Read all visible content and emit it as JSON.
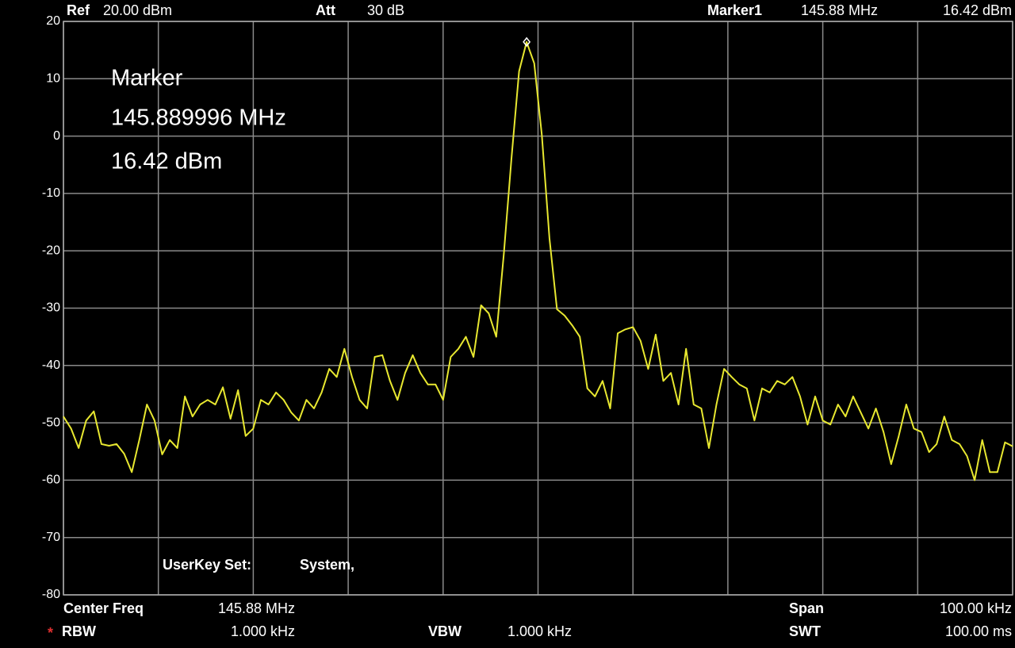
{
  "chart_data": {
    "type": "line",
    "header": {
      "ref_label": "Ref",
      "ref": "20.00 dBm",
      "att_label": "Att",
      "att": "30 dB",
      "marker_label": "Marker1",
      "marker_freq": "145.88 MHz",
      "marker_level": "16.42 dBm"
    },
    "annotation": [
      "Marker",
      "145.889996 MHz",
      "16.42 dBm"
    ],
    "userkey": {
      "label": "UserKey Set:",
      "value": "System,"
    },
    "footer": {
      "center_freq_label": "Center Freq",
      "center_freq": "145.88 MHz",
      "span_label": "Span",
      "span": "100.00 kHz",
      "rbw_flag": "*",
      "rbw_label": "RBW",
      "rbw": "1.000 kHz",
      "vbw_label": "VBW",
      "vbw": "1.000 kHz",
      "swt_label": "SWT",
      "swt": "100.00 ms"
    },
    "series": [
      {
        "color": "#e8e830",
        "values": [
          -48.9,
          -51,
          -54.4,
          -49.6,
          -48,
          -53.7,
          -54,
          -53.7,
          -55.4,
          -58.6,
          -52.9,
          -46.8,
          -49.6,
          -55.5,
          -53,
          -54.4,
          -45.4,
          -48.9,
          -46.8,
          -46,
          -46.8,
          -43.8,
          -49.3,
          -44.3,
          -52.3,
          -51,
          -46,
          -46.8,
          -44.7,
          -46,
          -48.2,
          -49.6,
          -46,
          -47.5,
          -44.7,
          -40.6,
          -42,
          -37.1,
          -42,
          -46,
          -47.5,
          -38.5,
          -38.2,
          -42.7,
          -46,
          -41.3,
          -38.2,
          -41.3,
          -43.3,
          -43.3,
          -46,
          -38.5,
          -37.1,
          -35,
          -38.5,
          -29.5,
          -30.9,
          -35,
          -20.5,
          -3.9,
          11.3,
          16.42,
          12.7,
          0.2,
          -17.8,
          -30.2,
          -31.3,
          -33,
          -35,
          -44,
          -45.4,
          -42.7,
          -47.5,
          -34.4,
          -33.7,
          -33.3,
          -35.7,
          -40.6,
          -34.6,
          -42.7,
          -41.3,
          -46.8,
          -37.1,
          -46.8,
          -47.5,
          -54.4,
          -46.8,
          -40.6,
          -42,
          -43.3,
          -44,
          -49.6,
          -44,
          -44.7,
          -42.7,
          -43.3,
          -42,
          -45.4,
          -50.3,
          -45.4,
          -49.6,
          -50.3,
          -46.8,
          -48.9,
          -45.4,
          -48.2,
          -51,
          -47.5,
          -51.6,
          -57.2,
          -52.3,
          -46.8,
          -51,
          -51.6,
          -55.1,
          -53.7,
          -48.9,
          -53,
          -53.7,
          -55.8,
          -60,
          -53,
          -58.6,
          -58.6,
          -53.4,
          -54.1
        ]
      }
    ],
    "ylim": [
      -80,
      20
    ],
    "yticks": [
      20,
      10,
      0,
      -10,
      -20,
      -30,
      -40,
      -50,
      -60,
      -70,
      -80
    ],
    "grid": true
  }
}
